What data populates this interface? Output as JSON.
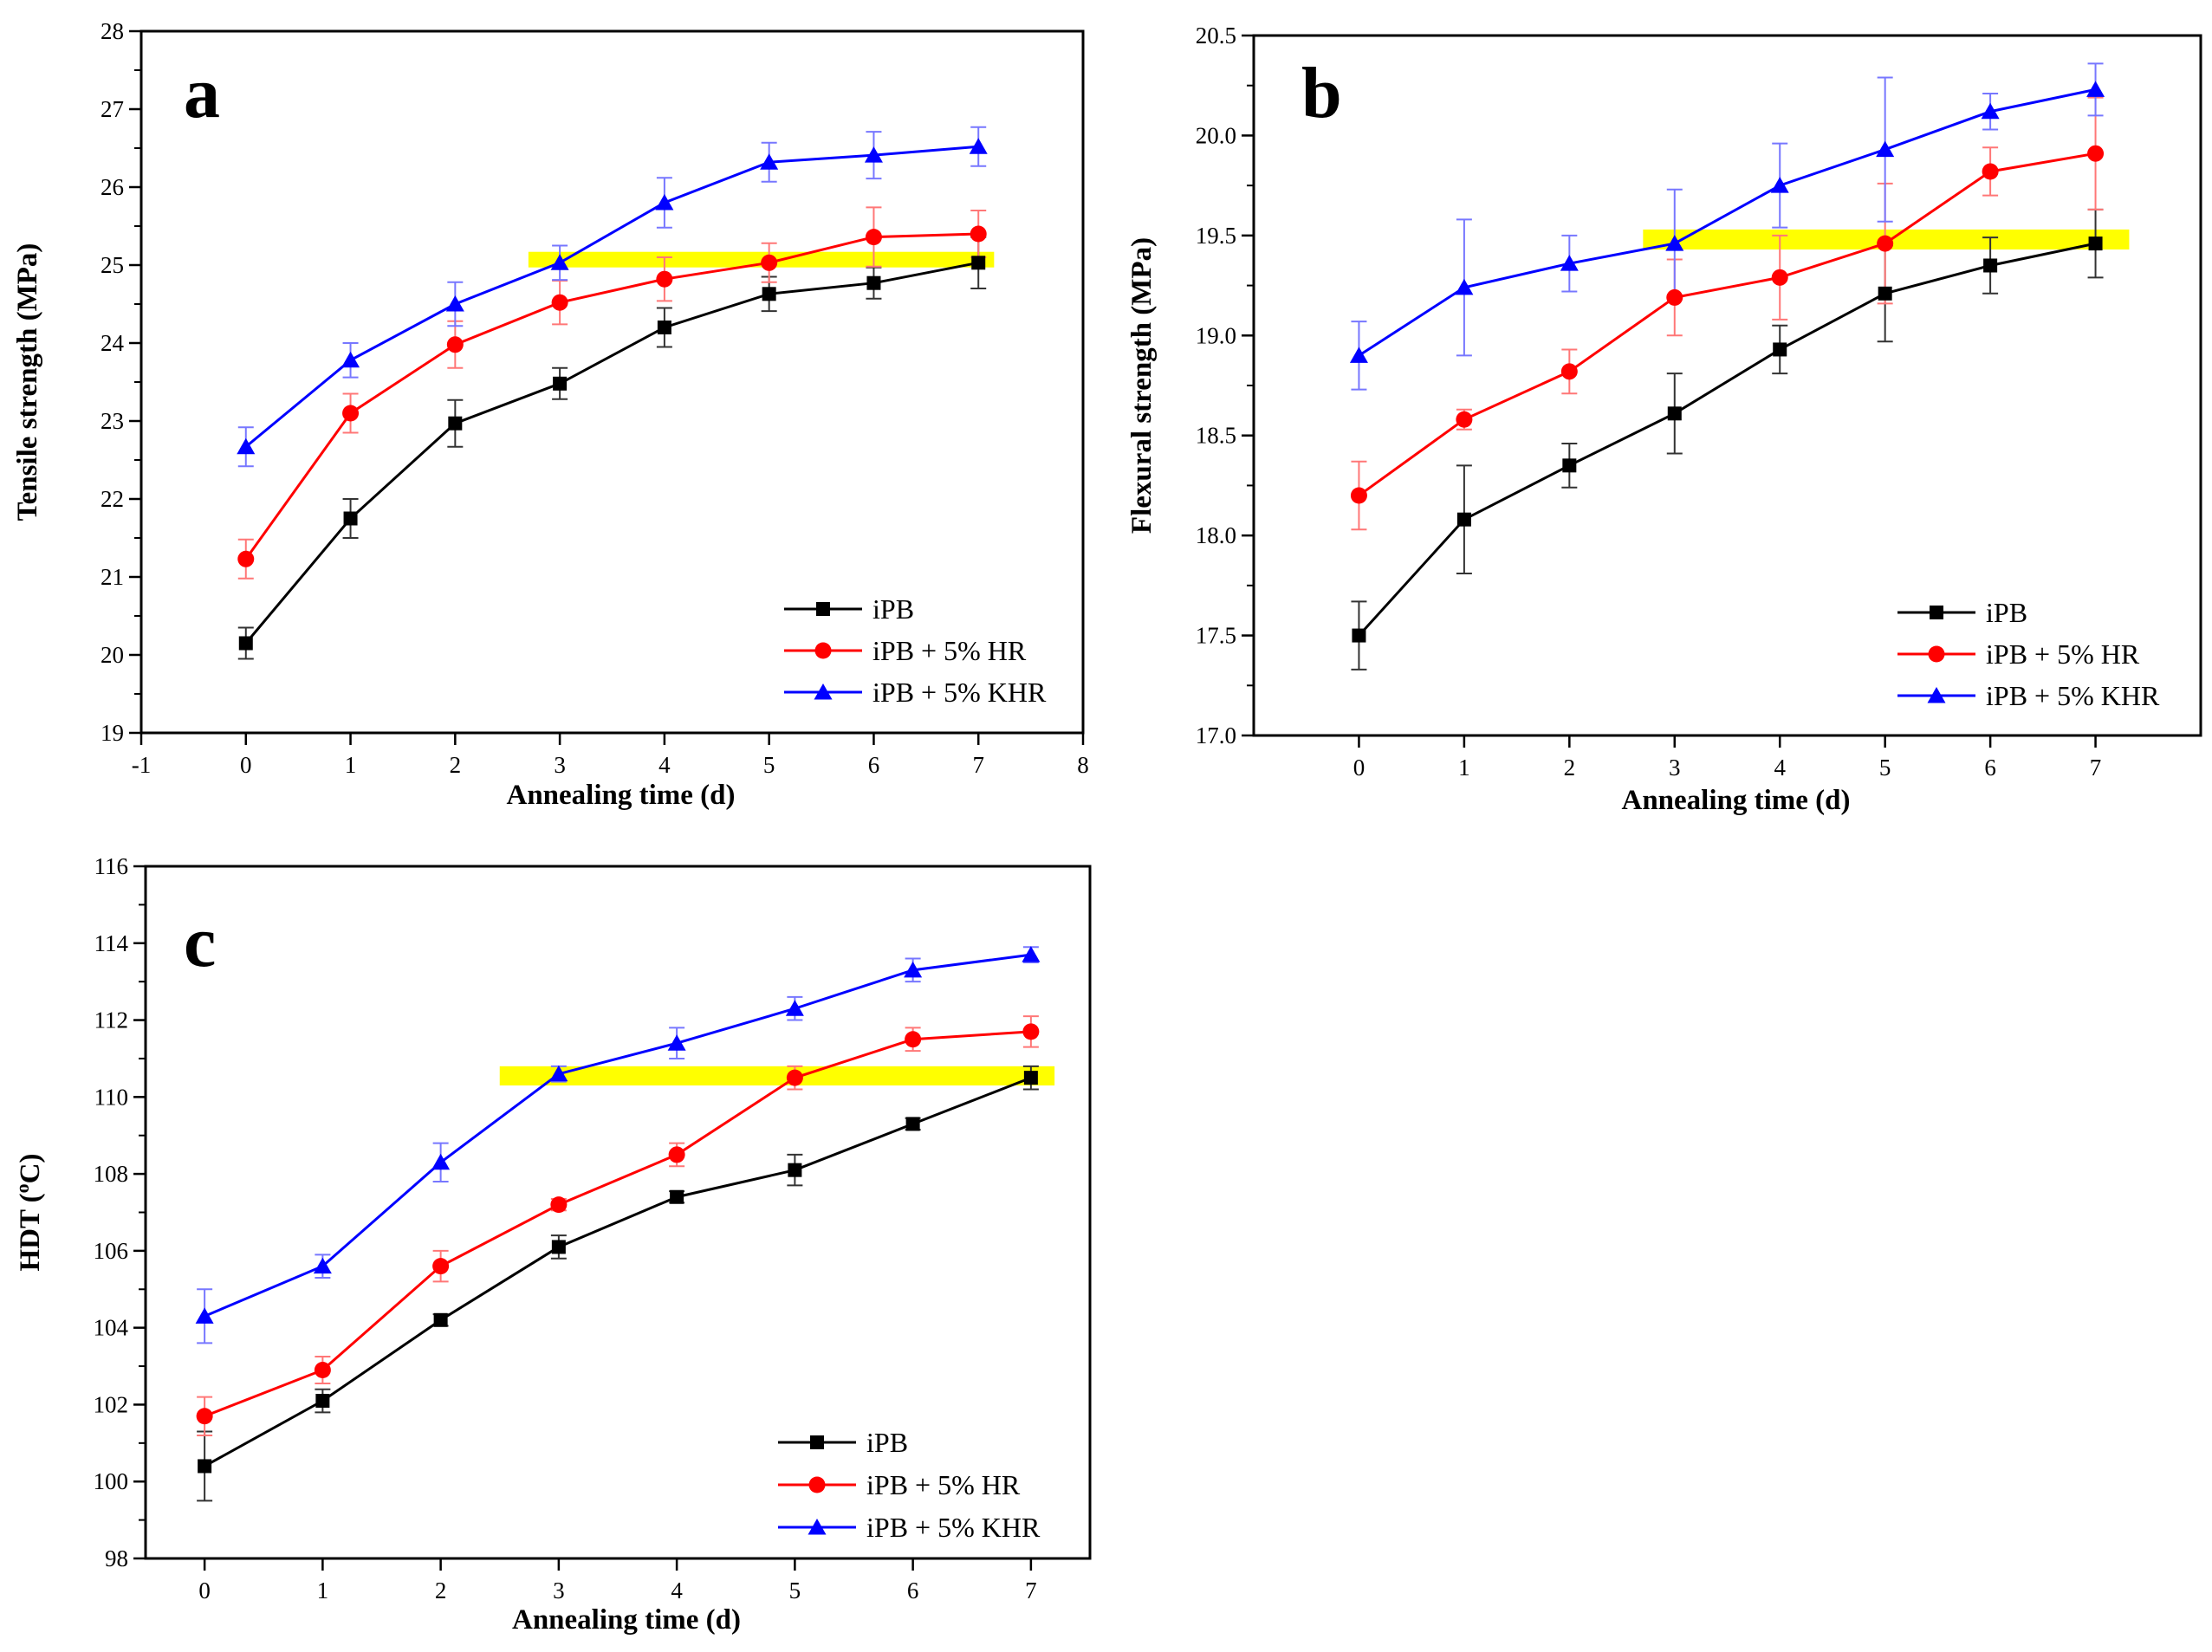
{
  "chart_data": [
    {
      "type": "line",
      "panel_label": "a",
      "xlabel": "Annealing time (d)",
      "ylabel": "Tensile strength (MPa)",
      "xlim": [
        -1,
        8
      ],
      "ylim": [
        19,
        28
      ],
      "xticks": [
        -1,
        0,
        1,
        2,
        3,
        4,
        5,
        6,
        7,
        8
      ],
      "xtick_labels": [
        "-1",
        "0",
        "1",
        "2",
        "3",
        "4",
        "5",
        "6",
        "7",
        "8"
      ],
      "yticks": [
        19,
        20,
        21,
        22,
        23,
        24,
        25,
        26,
        27,
        28
      ],
      "ytick_labels": [
        "19",
        "20",
        "21",
        "22",
        "23",
        "24",
        "25",
        "26",
        "27",
        "28"
      ],
      "legend_position": "bottom-right",
      "highlight_band": {
        "x": [
          2.7,
          7.15
        ],
        "y": [
          24.97,
          25.17
        ],
        "color": "#ffff00"
      },
      "x": [
        0,
        1,
        2,
        3,
        4,
        5,
        6,
        7
      ],
      "series": [
        {
          "name": "iPB",
          "marker": "square",
          "color": "#000000",
          "values": [
            20.15,
            21.75,
            22.97,
            23.48,
            24.2,
            24.63,
            24.77,
            25.03
          ],
          "errors": [
            0.2,
            0.25,
            0.3,
            0.2,
            0.25,
            0.22,
            0.2,
            0.33
          ]
        },
        {
          "name": "iPB + 5% HR",
          "marker": "circle",
          "color": "#ff0000",
          "values": [
            21.23,
            23.1,
            23.98,
            24.52,
            24.82,
            25.03,
            25.36,
            25.4
          ],
          "errors": [
            0.25,
            0.25,
            0.3,
            0.28,
            0.28,
            0.25,
            0.38,
            0.3
          ]
        },
        {
          "name": "iPB + 5% KHR",
          "marker": "triangle",
          "color": "#0000ff",
          "values": [
            22.67,
            23.78,
            24.5,
            25.03,
            25.8,
            26.32,
            26.41,
            26.52
          ],
          "errors": [
            0.25,
            0.22,
            0.28,
            0.22,
            0.32,
            0.25,
            0.3,
            0.25
          ]
        }
      ]
    },
    {
      "type": "line",
      "panel_label": "b",
      "xlabel": "Annealing time (d)",
      "ylabel": "Flexural strength (MPa)",
      "xlim": [
        -1,
        8
      ],
      "ylim": [
        17.0,
        20.5
      ],
      "xticks": [
        0,
        1,
        2,
        3,
        4,
        5,
        6,
        7
      ],
      "xtick_labels": [
        "0",
        "1",
        "2",
        "3",
        "4",
        "5",
        "6",
        "7"
      ],
      "yticks": [
        17.0,
        17.5,
        18.0,
        18.5,
        19.0,
        19.5,
        20.0,
        20.5
      ],
      "ytick_labels": [
        "17.0",
        "17.5",
        "18.0",
        "18.5",
        "19.0",
        "19.5",
        "20.0",
        "20.5"
      ],
      "legend_position": "bottom-right",
      "highlight_band": {
        "x": [
          2.7,
          7.32
        ],
        "y": [
          19.43,
          19.53
        ],
        "color": "#ffff00"
      },
      "x": [
        0,
        1,
        2,
        3,
        4,
        5,
        6,
        7
      ],
      "series": [
        {
          "name": "iPB",
          "marker": "square",
          "color": "#000000",
          "values": [
            17.5,
            18.08,
            18.35,
            18.61,
            18.93,
            19.21,
            19.35,
            19.46
          ],
          "errors": [
            0.17,
            0.27,
            0.11,
            0.2,
            0.12,
            0.24,
            0.14,
            0.17
          ]
        },
        {
          "name": "iPB + 5% HR",
          "marker": "circle",
          "color": "#ff0000",
          "values": [
            18.2,
            18.58,
            18.82,
            19.19,
            19.29,
            19.46,
            19.82,
            19.91
          ],
          "errors": [
            0.17,
            0.05,
            0.11,
            0.19,
            0.21,
            0.3,
            0.12,
            0.28
          ]
        },
        {
          "name": "iPB + 5% KHR",
          "marker": "triangle",
          "color": "#0000ff",
          "values": [
            18.9,
            19.24,
            19.36,
            19.46,
            19.75,
            19.93,
            20.12,
            20.23
          ],
          "errors": [
            0.17,
            0.34,
            0.14,
            0.27,
            0.21,
            0.36,
            0.09,
            0.13
          ]
        }
      ]
    },
    {
      "type": "line",
      "panel_label": "c",
      "xlabel": "Annealing time (d)",
      "ylabel": "HDT (°C)",
      "ylabel_parts": {
        "before": "HDT (",
        "sup": "o",
        "after": "C)"
      },
      "xlim": [
        -0.5,
        7.5
      ],
      "ylim": [
        98,
        116
      ],
      "xticks": [
        0,
        1,
        2,
        3,
        4,
        5,
        6,
        7
      ],
      "xtick_labels": [
        "0",
        "1",
        "2",
        "3",
        "4",
        "5",
        "6",
        "7"
      ],
      "yticks": [
        98,
        100,
        102,
        104,
        106,
        108,
        110,
        112,
        114,
        116
      ],
      "ytick_labels": [
        "98",
        "100",
        "102",
        "104",
        "106",
        "108",
        "110",
        "112",
        "114",
        "116"
      ],
      "legend_position": "bottom-right",
      "highlight_band": {
        "x": [
          2.5,
          7.2
        ],
        "y": [
          110.3,
          110.8
        ],
        "color": "#ffff00"
      },
      "x": [
        0,
        1,
        2,
        3,
        4,
        5,
        6,
        7
      ],
      "series": [
        {
          "name": "iPB",
          "marker": "square",
          "color": "#000000",
          "values": [
            100.4,
            102.1,
            104.2,
            106.1,
            107.4,
            108.1,
            109.3,
            110.5
          ],
          "errors": [
            0.9,
            0.3,
            0.15,
            0.3,
            0.15,
            0.4,
            0.15,
            0.3
          ]
        },
        {
          "name": "iPB + 5% HR",
          "marker": "circle",
          "color": "#ff0000",
          "values": [
            101.7,
            102.9,
            105.6,
            107.2,
            108.5,
            110.5,
            111.5,
            111.7
          ],
          "errors": [
            0.5,
            0.35,
            0.4,
            0.15,
            0.3,
            0.3,
            0.3,
            0.4
          ]
        },
        {
          "name": "iPB + 5% KHR",
          "marker": "triangle",
          "color": "#0000ff",
          "values": [
            104.3,
            105.6,
            108.3,
            110.6,
            111.4,
            112.3,
            113.3,
            113.7
          ],
          "errors": [
            0.7,
            0.3,
            0.5,
            0.2,
            0.4,
            0.3,
            0.3,
            0.2
          ]
        }
      ]
    }
  ]
}
